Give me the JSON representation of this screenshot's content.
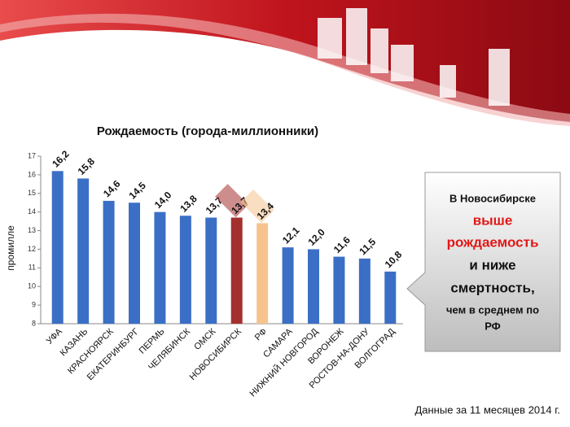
{
  "chart_data": {
    "type": "bar",
    "title": "Рождаемость (города-миллионники)",
    "y_label": "промилле",
    "categories": [
      "УФА",
      "КАЗАНЬ",
      "КРАСНОЯРСК",
      "ЕКАТЕРИНБУРГ",
      "ПЕРМЬ",
      "ЧЕЛЯБИНСК",
      "ОМСК",
      "НОВОСИБИРСК",
      "РФ",
      "САМАРА",
      "НИЖНИЙ НОВГОРОД",
      "ВОРОНЕЖ",
      "РОСТОВ-НА-ДОНУ",
      "ВОЛГОГРАД"
    ],
    "values": [
      16.2,
      15.8,
      14.6,
      14.5,
      14.0,
      13.8,
      13.7,
      13.7,
      13.4,
      12.1,
      12.0,
      11.6,
      11.5,
      10.8
    ],
    "value_labels": [
      "16,2",
      "15,8",
      "14,6",
      "14,5",
      "14,0",
      "13,8",
      "13,7",
      "13,7",
      "13,4",
      "12,1",
      "12,0",
      "11,6",
      "11,5",
      "10,8"
    ],
    "color": "#3b6fc6",
    "colors": [
      "#3b6fc6",
      "#3b6fc6",
      "#3b6fc6",
      "#3b6fc6",
      "#3b6fc6",
      "#3b6fc6",
      "#3b6fc6",
      "#a4302e",
      "#f6c38e",
      "#3b6fc6",
      "#3b6fc6",
      "#3b6fc6",
      "#3b6fc6",
      "#3b6fc6"
    ],
    "ylim": [
      8,
      17
    ],
    "yticks": [
      8,
      9,
      10,
      11,
      12,
      13,
      14,
      15,
      16,
      17
    ]
  },
  "callout": {
    "lines": [
      "В Новосибирске",
      "выше",
      "рождаемость",
      "и ниже",
      "смертность,",
      "чем в среднем по",
      "РФ"
    ]
  },
  "footer": "Данные за 11 месяцев 2014 г."
}
